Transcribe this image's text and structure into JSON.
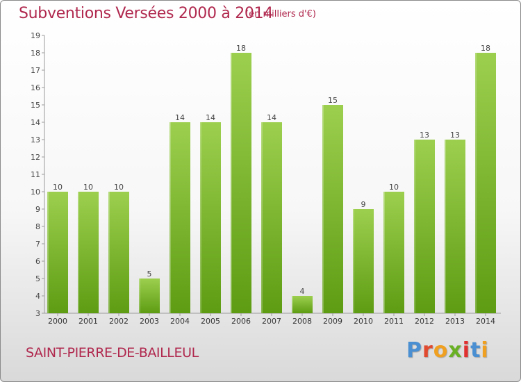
{
  "header": {
    "title": "Subventions Versées 2000 à 2014",
    "subtitle": "(en milliers d'€)"
  },
  "footer": {
    "commune": "SAINT-PIERRE-DE-BAILLEUL",
    "logo_text": "Proxiti"
  },
  "colors": {
    "title": "#b0284e",
    "bar_top": "#9ccf4e",
    "bar_bottom": "#5e9c13",
    "logo_letters": [
      "#4a8fd1",
      "#e04a2f",
      "#f0a020",
      "#6ab025",
      "#e0302f",
      "#4a8fd1",
      "#f0a020"
    ]
  },
  "chart_data": {
    "type": "bar",
    "title": "Subventions Versées 2000 à 2014",
    "subtitle": "(en milliers d'€)",
    "xlabel": "",
    "ylabel": "",
    "categories": [
      "2000",
      "2001",
      "2002",
      "2003",
      "2004",
      "2005",
      "2006",
      "2007",
      "2008",
      "2009",
      "2010",
      "2011",
      "2012",
      "2013",
      "2014"
    ],
    "values": [
      10,
      10,
      10,
      5,
      14,
      14,
      18,
      14,
      4,
      15,
      9,
      10,
      13,
      13,
      18
    ],
    "ylim": [
      3,
      19
    ],
    "yticks": [
      3,
      4,
      5,
      6,
      7,
      8,
      9,
      10,
      11,
      12,
      13,
      14,
      15,
      16,
      17,
      18,
      19
    ],
    "grid": false,
    "data_labels": true
  }
}
